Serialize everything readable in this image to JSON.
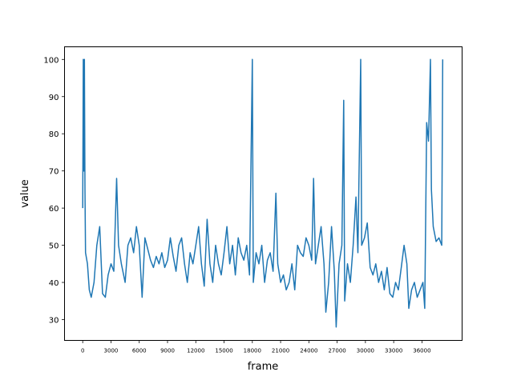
{
  "chart_data": {
    "type": "line",
    "title": "",
    "xlabel": "frame",
    "ylabel": "value",
    "xlim": [
      -1930,
      40260
    ],
    "ylim": [
      24.4,
      103.4
    ],
    "xticks": [
      0,
      3000,
      6000,
      9000,
      12000,
      15000,
      18000,
      21000,
      24000,
      27000,
      30000,
      33000,
      36000
    ],
    "xtick_labels": [
      "0",
      "3000",
      "6000",
      "9000",
      "12000",
      "15000",
      "18000",
      "21000",
      "24000",
      "27000",
      "30000",
      "33000",
      "36000"
    ],
    "yticks": [
      30,
      40,
      50,
      60,
      70,
      80,
      90,
      100
    ],
    "ytick_labels": [
      "30",
      "40",
      "50",
      "60",
      "70",
      "80",
      "90",
      "100"
    ],
    "grid": false,
    "series": [
      {
        "name": "value",
        "color": "#1f77b4",
        "x": [
          0,
          60,
          120,
          180,
          240,
          300,
          500,
          700,
          900,
          1200,
          1500,
          1800,
          2100,
          2400,
          2700,
          3000,
          3300,
          3600,
          3800,
          4100,
          4500,
          4800,
          5100,
          5400,
          5700,
          6000,
          6300,
          6600,
          6900,
          7200,
          7500,
          7800,
          8100,
          8400,
          8700,
          9000,
          9300,
          9600,
          9900,
          10200,
          10500,
          10800,
          11100,
          11400,
          11700,
          12000,
          12300,
          12600,
          12900,
          13200,
          13500,
          13800,
          14100,
          14400,
          14700,
          15000,
          15300,
          15600,
          15900,
          16200,
          16500,
          16800,
          17100,
          17400,
          17700,
          18000,
          18100,
          18400,
          18700,
          19000,
          19300,
          19600,
          19900,
          20200,
          20500,
          20700,
          21000,
          21300,
          21600,
          21900,
          22200,
          22500,
          22800,
          23100,
          23400,
          23700,
          24000,
          24300,
          24500,
          24700,
          25000,
          25300,
          25600,
          25800,
          26100,
          26400,
          26700,
          26900,
          27200,
          27500,
          27700,
          27800,
          28100,
          28400,
          28700,
          29000,
          29200,
          29500,
          29600,
          29900,
          30200,
          30500,
          30800,
          31100,
          31400,
          31700,
          32000,
          32300,
          32600,
          32900,
          33200,
          33500,
          33800,
          34100,
          34400,
          34600,
          34900,
          35200,
          35500,
          35800,
          36100,
          36300,
          36500,
          36700,
          36900,
          37000,
          37200,
          37500,
          37800,
          38100,
          38200
        ],
        "values": [
          60,
          100,
          70,
          100,
          65,
          48,
          45,
          38,
          36,
          40,
          50,
          55,
          37,
          36,
          42,
          45,
          43,
          68,
          50,
          45,
          40,
          50,
          52,
          48,
          55,
          50,
          36,
          52,
          49,
          46,
          44,
          47,
          45,
          48,
          44,
          46,
          52,
          47,
          43,
          50,
          52,
          45,
          40,
          48,
          45,
          50,
          55,
          45,
          39,
          57,
          45,
          40,
          50,
          45,
          42,
          48,
          55,
          45,
          50,
          42,
          52,
          48,
          46,
          50,
          42,
          100,
          40,
          48,
          45,
          50,
          40,
          46,
          48,
          43,
          64,
          45,
          40,
          42,
          38,
          40,
          45,
          38,
          50,
          48,
          47,
          52,
          50,
          46,
          68,
          45,
          50,
          55,
          45,
          32,
          40,
          55,
          43,
          28,
          45,
          50,
          89,
          35,
          45,
          40,
          50,
          63,
          48,
          100,
          50,
          52,
          56,
          44,
          42,
          45,
          40,
          43,
          38,
          44,
          37,
          36,
          40,
          38,
          44,
          50,
          45,
          33,
          38,
          40,
          36,
          38,
          40,
          33,
          83,
          78,
          100,
          65,
          55,
          51,
          52,
          50,
          100
        ]
      }
    ]
  }
}
